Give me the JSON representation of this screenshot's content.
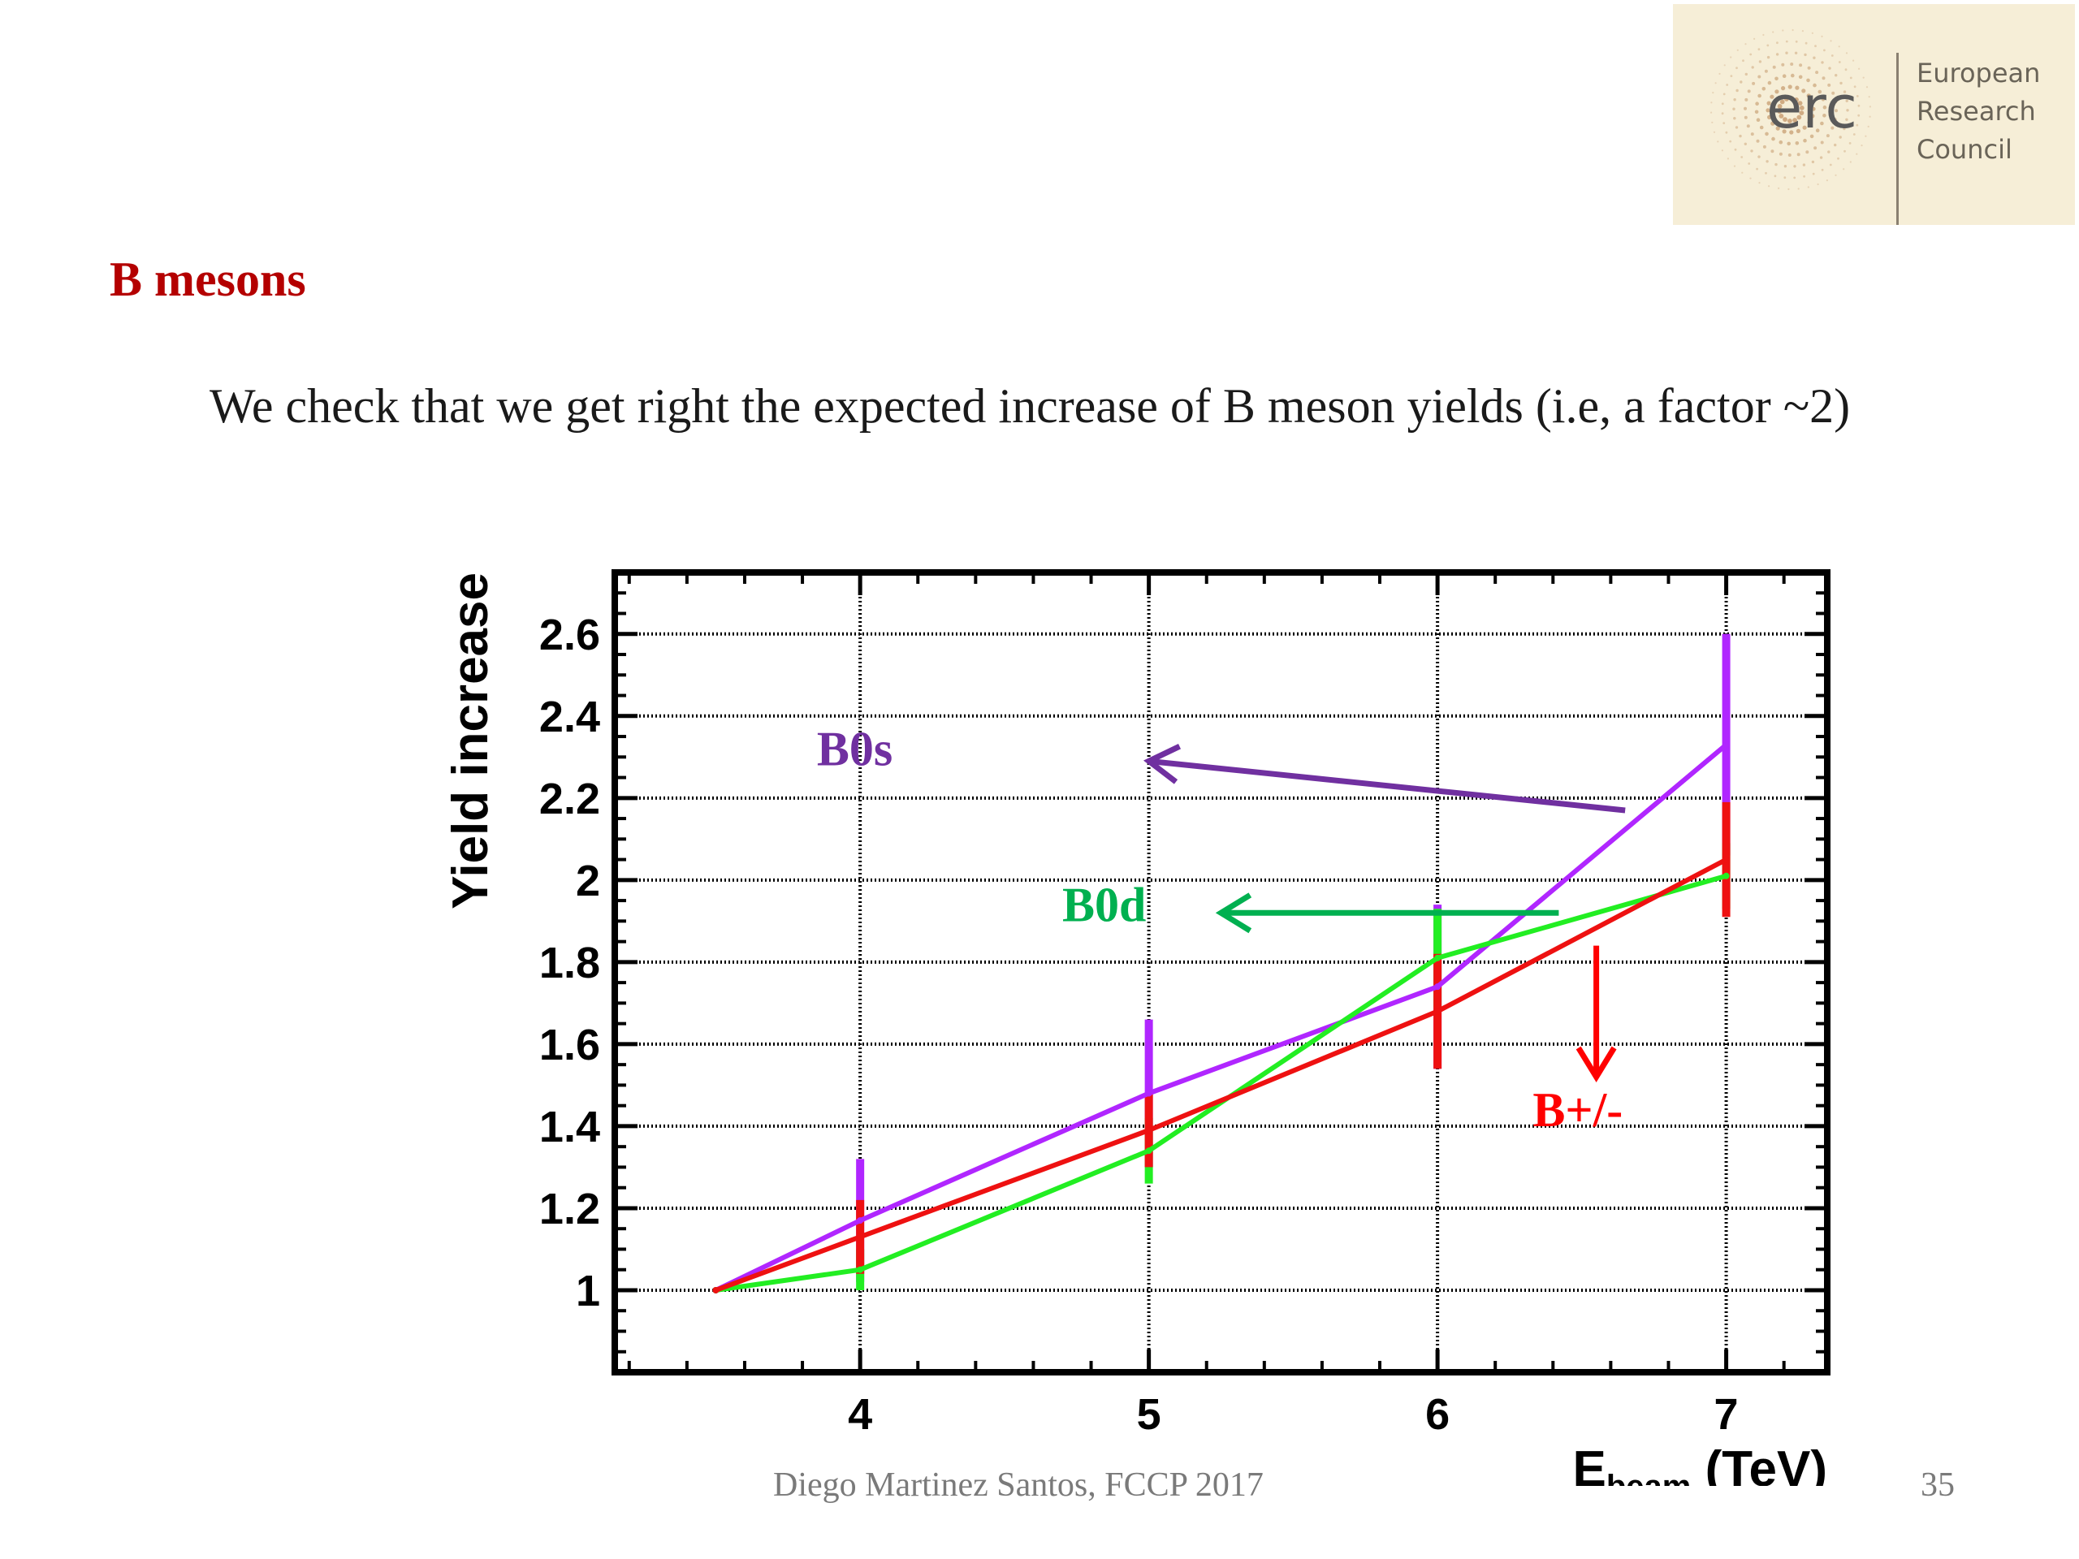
{
  "slide": {
    "title": "B mesons",
    "text": "We check that we get right the expected increase of B meson yields (i.e, a factor ~2)",
    "footer": "Diego Martinez Santos, FCCP 2017",
    "page_number": "35"
  },
  "logo": {
    "acronym": "erc",
    "name_lines": [
      "European",
      "Research",
      "Council"
    ]
  },
  "chart_data": {
    "type": "line",
    "title": "",
    "xlabel": "E",
    "xlabel_sub": "beam",
    "xlabel_unit": "(TeV)",
    "ylabel": "Yield increase",
    "xlim": [
      3.15,
      7.35
    ],
    "ylim": [
      0.8,
      2.75
    ],
    "x_ticks": [
      4,
      5,
      6,
      7
    ],
    "x_tick_labels": [
      "4",
      "5",
      "6",
      "7"
    ],
    "y_ticks": [
      1,
      1.2,
      1.4,
      1.6,
      1.8,
      2,
      2.2,
      2.4,
      2.6
    ],
    "y_tick_labels": [
      "1",
      "1.2",
      "1.4",
      "1.6",
      "1.8",
      "2",
      "2.2",
      "2.4",
      "2.6"
    ],
    "grid": true,
    "series": [
      {
        "name": "B0s",
        "color": "#b026ff",
        "x": [
          3.5,
          4,
          5,
          6,
          7
        ],
        "y": [
          1.0,
          1.17,
          1.48,
          1.74,
          2.33
        ],
        "err": [
          0,
          0.15,
          0.18,
          0.2,
          0.27
        ]
      },
      {
        "name": "B0d",
        "color": "#22ee22",
        "x": [
          3.5,
          4,
          5,
          6,
          7
        ],
        "y": [
          1.0,
          1.05,
          1.34,
          1.81,
          2.01
        ],
        "err": [
          0,
          0.05,
          0.08,
          0.12,
          0.08
        ]
      },
      {
        "name": "B+/-",
        "color": "#ee1111",
        "x": [
          3.5,
          4,
          5,
          6,
          7
        ],
        "y": [
          1.0,
          1.13,
          1.39,
          1.68,
          2.05
        ],
        "err": [
          0,
          0.09,
          0.09,
          0.14,
          0.14
        ]
      }
    ],
    "annotations": [
      {
        "text": "B0s",
        "color": "#7030a0",
        "text_at": [
          3.85,
          2.28
        ],
        "arrow_from": [
          6.65,
          2.17
        ],
        "arrow_to": [
          5.0,
          2.29
        ]
      },
      {
        "text": "B0d",
        "color": "#00b050",
        "text_at": [
          4.7,
          1.9
        ],
        "arrow_from": [
          6.42,
          1.92
        ],
        "arrow_to": [
          5.25,
          1.92
        ]
      },
      {
        "text": "B+/-",
        "color": "#ff0000",
        "text_at": [
          6.33,
          1.4
        ],
        "arrow_from": [
          6.55,
          1.84
        ],
        "arrow_to": [
          6.55,
          1.52
        ]
      }
    ]
  }
}
